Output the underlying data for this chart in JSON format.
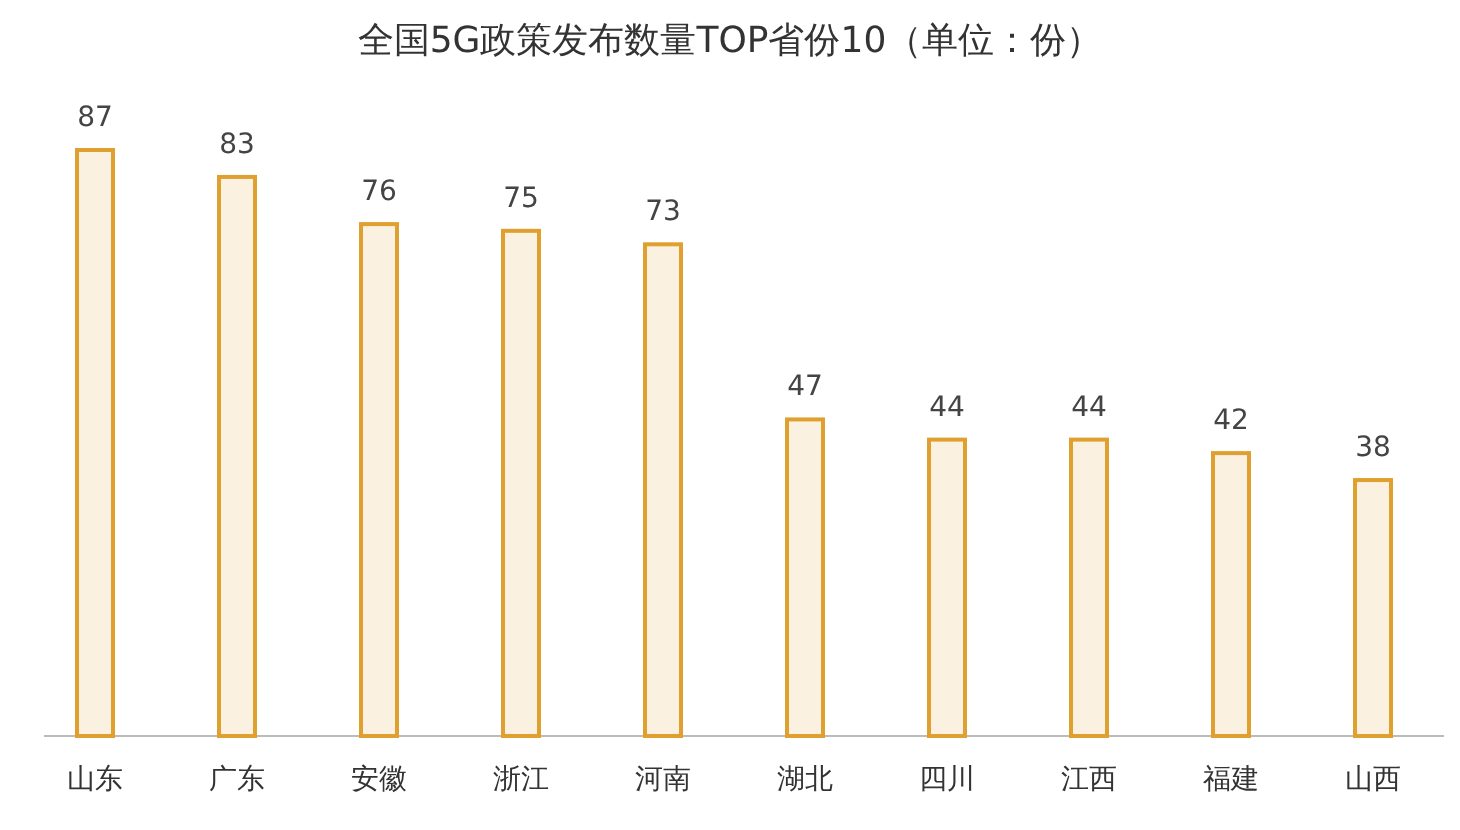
{
  "chart_data": {
    "type": "bar",
    "title": "全国5G政策发布数量TOP省份10（单位：份）",
    "categories": [
      "山东",
      "广东",
      "安徽",
      "浙江",
      "河南",
      "湖北",
      "四川",
      "江西",
      "福建",
      "山西"
    ],
    "values": [
      87,
      83,
      76,
      75,
      73,
      47,
      44,
      44,
      42,
      38
    ],
    "color": "#e0a030",
    "data_labels": true
  }
}
